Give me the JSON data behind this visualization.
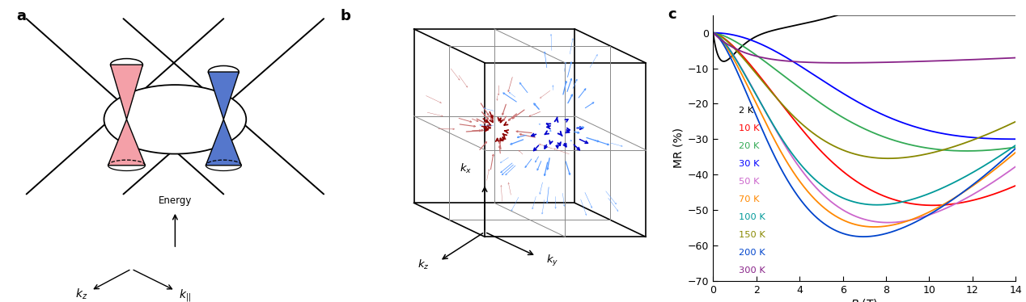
{
  "panel_labels": [
    "a",
    "b",
    "c"
  ],
  "panel_label_fontsize": 13,
  "panel_label_fontweight": "bold",
  "temperatures": [
    "2 K",
    "10 K",
    "20 K",
    "30 K",
    "50 K",
    "70 K",
    "100 K",
    "150 K",
    "200 K",
    "300 K"
  ],
  "temp_colors": [
    "#000000",
    "#ff0000",
    "#33aa55",
    "#0000ff",
    "#cc66cc",
    "#ff8800",
    "#009999",
    "#888800",
    "#0044cc",
    "#882288"
  ],
  "xlabel": "B (T)",
  "ylabel": "MR (%)",
  "xlim": [
    0,
    14
  ],
  "ylim": [
    -70,
    5
  ],
  "yticks": [
    0,
    -10,
    -20,
    -30,
    -40,
    -50,
    -60,
    -70
  ],
  "xticks": [
    0,
    2,
    4,
    6,
    8,
    10,
    12,
    14
  ],
  "background_color": "#ffffff",
  "cone_color_left": "#f4a0a8",
  "cone_color_right": "#5577cc",
  "box_color": "#222222"
}
